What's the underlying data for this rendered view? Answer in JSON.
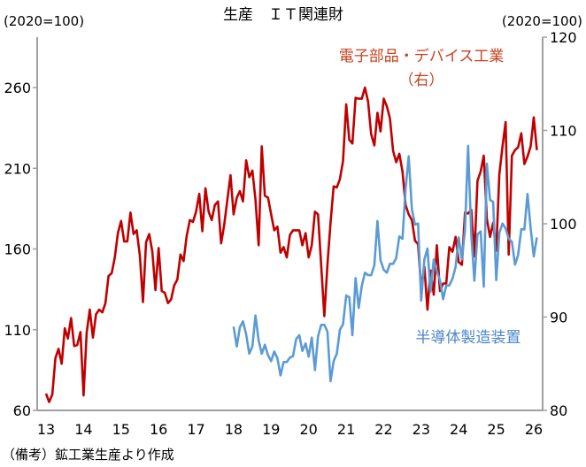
{
  "chart_data": {
    "type": "line",
    "title": "生産　ＩＴ関連財",
    "left_unit": "(2020=100)",
    "right_unit": "(2020=100)",
    "footnote": "（備考）鉱工業生産より作成",
    "left_axis": {
      "range": [
        60,
        285
      ],
      "ticks": [
        "60",
        "110",
        "160",
        "210",
        "260"
      ],
      "tick_values": [
        60,
        110,
        160,
        210,
        260
      ]
    },
    "right_axis": {
      "range": [
        80,
        120
      ],
      "ticks": [
        "80",
        "90",
        "100",
        "110",
        "120"
      ],
      "tick_values": [
        80,
        90,
        100,
        110,
        120
      ]
    },
    "x_axis": {
      "ticks": [
        "13",
        "14",
        "15",
        "16",
        "17",
        "18",
        "19",
        "20",
        "21",
        "22",
        "23",
        "24",
        "25",
        "26"
      ],
      "tick_values": [
        2013,
        2014,
        2015,
        2016,
        2017,
        2018,
        2019,
        2020,
        2021,
        2022,
        2023,
        2024,
        2025,
        2026
      ],
      "range": [
        2012.75,
        2026.25
      ]
    },
    "grid": false,
    "series": [
      {
        "name": "電子部品・デバイス工業",
        "name_suffix": "（右）",
        "axis": "right",
        "color": "#c00000",
        "label_color": "#c8401e",
        "start": 2013.0,
        "step_months": 1,
        "values": [
          81.8,
          80.9,
          81.7,
          85.6,
          86.6,
          85.0,
          88.8,
          87.7,
          89.9,
          86.9,
          87.0,
          88.4,
          81.6,
          88.3,
          90.8,
          87.8,
          90.3,
          90.8,
          90.5,
          91.5,
          94.4,
          94.7,
          96.4,
          99.0,
          100.3,
          98.1,
          98.1,
          101.2,
          98.9,
          99.3,
          96.6,
          91.6,
          98.0,
          98.9,
          97.0,
          92.9,
          97.4,
          92.8,
          92.6,
          91.5,
          91.9,
          93.4,
          94.0,
          96.7,
          96.0,
          98.7,
          100.4,
          100.2,
          101.3,
          103.2,
          99.2,
          103.8,
          101.3,
          100.4,
          102.0,
          102.4,
          97.9,
          99.9,
          102.6,
          105.2,
          101.0,
          102.8,
          103.5,
          102.4,
          106.8,
          105.0,
          105.7,
          102.6,
          97.7,
          108.3,
          103.0,
          102.8,
          101.0,
          99.3,
          99.7,
          96.9,
          97.5,
          96.4,
          98.8,
          99.3,
          99.3,
          99.3,
          97.7,
          99.0,
          96.4,
          97.7,
          101.3,
          101.0,
          95.6,
          90.1,
          95.6,
          100.1,
          104.0,
          103.9,
          104.8,
          106.7,
          112.8,
          109.0,
          108.6,
          113.5,
          113.4,
          113.4,
          114.6,
          113.1,
          109.6,
          108.4,
          111.9,
          109.9,
          113.4,
          112.6,
          111.3,
          107.8,
          106.6,
          107.5,
          105.6,
          102.0,
          101.0,
          100.4,
          98.2,
          97.8,
          93.1,
          95.4,
          90.8,
          95.0,
          92.4,
          97.7,
          92.8,
          93.6,
          93.6,
          97.5,
          97.0,
          98.6,
          95.9,
          95.6,
          101.2,
          101.1,
          101.5,
          96.5,
          104.6,
          105.6,
          107.3,
          100.5,
          98.6,
          100.1,
          97.1,
          105.3,
          108.3,
          110.9,
          96.7,
          107.3,
          107.9,
          108.2,
          109.7,
          106.4,
          107.2,
          108.3,
          111.4,
          107.9
        ]
      },
      {
        "name": "半導体製造装置",
        "axis": "left",
        "color": "#5b9bd5",
        "label_color": "#4a86c8",
        "start": 2018.0,
        "step_months": 1,
        "values": [
          111.9,
          99.6,
          111.5,
          115.2,
          107.0,
          95.1,
          99.6,
          118.8,
          103.3,
          95.1,
          100.6,
          94.2,
          90.5,
          96.5,
          92.3,
          81.7,
          90.0,
          90.0,
          92.7,
          93.6,
          104.2,
          106.6,
          96.9,
          101.5,
          93.3,
          105.1,
          85.0,
          106.0,
          113.0,
          113.0,
          108.8,
          78.1,
          90.5,
          95.1,
          110.0,
          113.3,
          131.2,
          130.1,
          106.6,
          142.0,
          123.4,
          137.1,
          145.3,
          143.8,
          143.8,
          149.9,
          177.3,
          153.0,
          147.1,
          145.3,
          150.8,
          150.8,
          154.4,
          167.8,
          166.3,
          197.4,
          217.4,
          184.6,
          175.1,
          175.8,
          128.0,
          153.5,
          160.3,
          133.4,
          153.5,
          146.2,
          140.7,
          128.9,
          137.4,
          137.4,
          141.7,
          148.9,
          167.2,
          153.5,
          171.8,
          223.9,
          169.1,
          140.4,
          169.1,
          170.9,
          136.6,
          212.9,
          190.4,
          189.2,
          140.7,
          170.0,
          175.8,
          172.7,
          166.3,
          164.5,
          150.3,
          156.3,
          172.3,
          172.1,
          194.1,
          172.7,
          155.4,
          167.2
        ]
      }
    ]
  }
}
